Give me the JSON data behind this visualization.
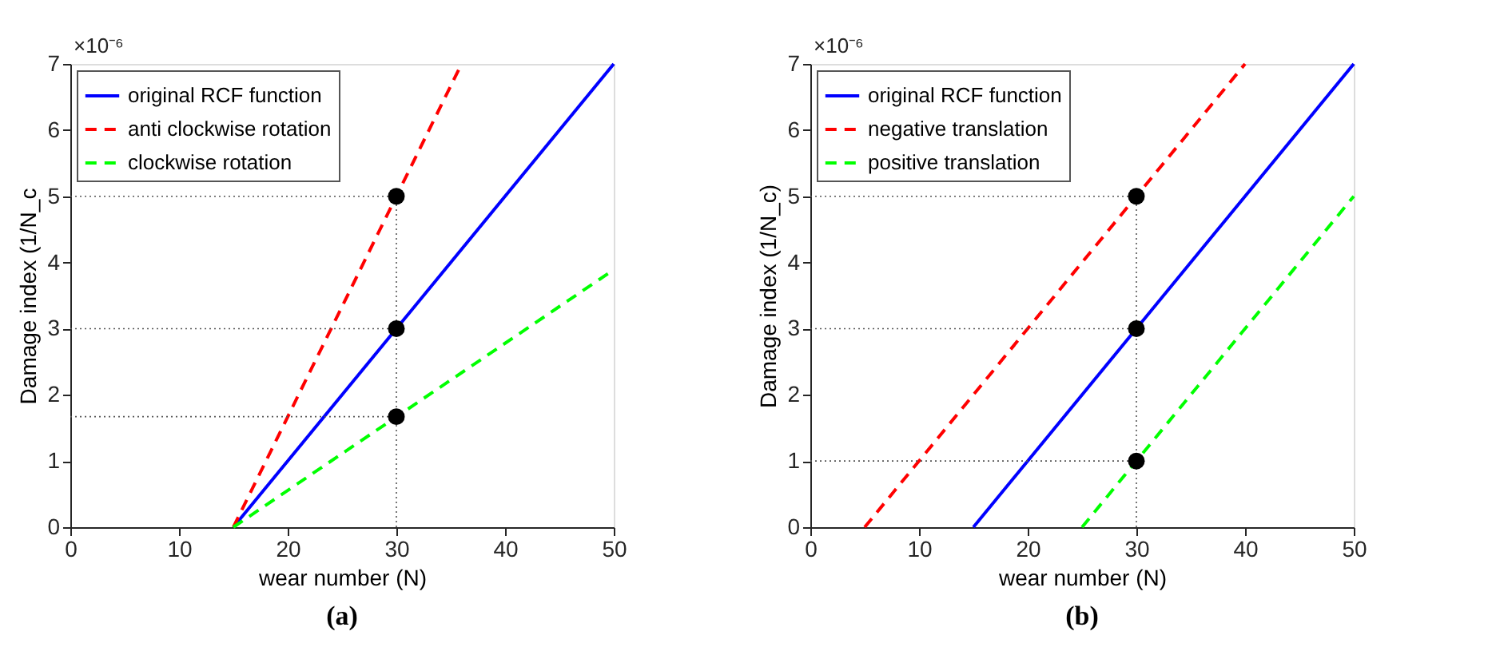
{
  "chart_data": [
    {
      "type": "line",
      "xlabel": "wear number (N)",
      "ylabel": "Damage index (1/N_c",
      "xlim": [
        0,
        50
      ],
      "ylim": [
        0,
        7
      ],
      "xticks": [
        0,
        10,
        20,
        30,
        40,
        50
      ],
      "yticks": [
        0,
        1,
        2,
        3,
        4,
        5,
        6,
        7
      ],
      "legend": "top left",
      "annotations": [
        "×10⁻⁶",
        "(a)"
      ],
      "series": [
        {
          "name": "original RCF function",
          "color": "#0000ff",
          "line_style": "solid",
          "x": [
            15,
            50
          ],
          "values": [
            0,
            7
          ]
        },
        {
          "name": "anti clockwise rotation",
          "color": "#ff0000",
          "line_style": "dashed",
          "x": [
            15,
            36
          ],
          "values": [
            0,
            7
          ]
        },
        {
          "name": "clockwise rotation",
          "color": "#00ff00",
          "line_style": "dashed",
          "x": [
            15,
            50
          ],
          "values": [
            0,
            3.89
          ]
        },
        {
          "type": "line",
          "color": "#555555",
          "line_style": "dotted",
          "x": [
            0,
            30
          ],
          "values": [
            5,
            5
          ]
        },
        {
          "type": "line",
          "color": "#555555",
          "line_style": "dotted",
          "x": [
            0,
            30
          ],
          "values": [
            3,
            3
          ]
        },
        {
          "type": "line",
          "color": "#555555",
          "line_style": "dotted",
          "x": [
            0,
            30
          ],
          "values": [
            1.67,
            1.67
          ]
        },
        {
          "type": "line",
          "color": "#555555",
          "line_style": "dotted",
          "x": [
            30,
            30
          ],
          "values": [
            0,
            5
          ]
        },
        {
          "type": "scatter",
          "color": "#000000",
          "marker": "circle",
          "x": [
            30,
            30,
            30
          ],
          "values": [
            5,
            3,
            1.67
          ]
        }
      ]
    },
    {
      "type": "line",
      "xlabel": "wear number (N)",
      "ylabel": "Damage index (1/N_c)",
      "xlim": [
        0,
        50
      ],
      "ylim": [
        0,
        7
      ],
      "xticks": [
        0,
        10,
        20,
        30,
        40,
        50
      ],
      "yticks": [
        0,
        1,
        2,
        3,
        4,
        5,
        6,
        7
      ],
      "legend": "top left",
      "annotations": [
        "×10⁻⁶",
        "(b)"
      ],
      "series": [
        {
          "name": "original RCF function",
          "color": "#0000ff",
          "line_style": "solid",
          "x": [
            15,
            50
          ],
          "values": [
            0,
            7
          ]
        },
        {
          "name": "negative translation",
          "color": "#ff0000",
          "line_style": "dashed",
          "x": [
            5,
            40
          ],
          "values": [
            0,
            7
          ]
        },
        {
          "name": "positive translation",
          "color": "#00ff00",
          "line_style": "dashed",
          "x": [
            25,
            50
          ],
          "values": [
            0,
            5
          ]
        },
        {
          "type": "line",
          "color": "#555555",
          "line_style": "dotted",
          "x": [
            0,
            30
          ],
          "values": [
            5,
            5
          ]
        },
        {
          "type": "line",
          "color": "#555555",
          "line_style": "dotted",
          "x": [
            0,
            30
          ],
          "values": [
            3,
            3
          ]
        },
        {
          "type": "line",
          "color": "#555555",
          "line_style": "dotted",
          "x": [
            0,
            30
          ],
          "values": [
            1,
            1
          ]
        },
        {
          "type": "line",
          "color": "#555555",
          "line_style": "dotted",
          "x": [
            30,
            30
          ],
          "values": [
            0,
            5
          ]
        },
        {
          "type": "scatter",
          "color": "#000000",
          "marker": "circle",
          "x": [
            30,
            30,
            30
          ],
          "values": [
            5,
            3,
            1
          ]
        }
      ]
    }
  ]
}
